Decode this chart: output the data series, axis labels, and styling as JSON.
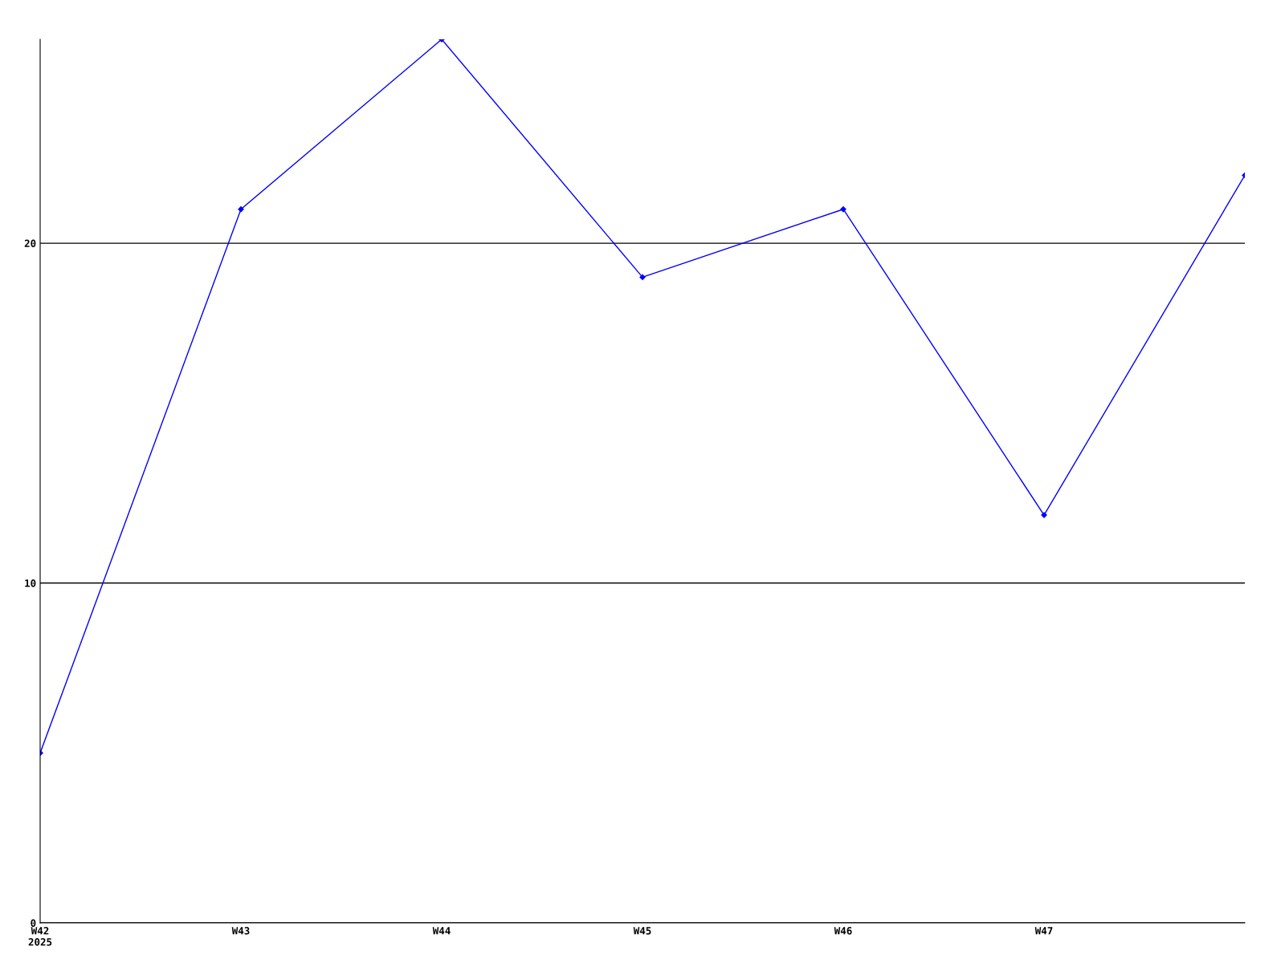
{
  "chart_data": {
    "type": "line",
    "categories": [
      "W42\n2025",
      "W43",
      "W44",
      "W45",
      "W46",
      "W47",
      null
    ],
    "series": [
      {
        "color": "#0000ff",
        "values": [
          5,
          21,
          26,
          19,
          21,
          12,
          22
        ]
      }
    ],
    "ylim": [
      0,
      26
    ],
    "yticks": [
      0,
      10,
      20
    ],
    "grid": "y",
    "marker": "diamond",
    "line_style": "solid"
  }
}
